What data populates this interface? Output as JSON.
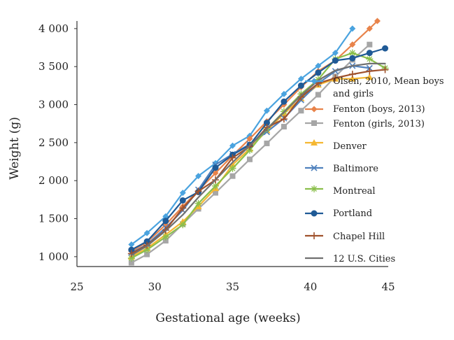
{
  "chart_data": {
    "type": "line",
    "xlabel": "Gestational age (weeks)",
    "ylabel": "Weight (g)",
    "xlim": [
      25,
      45
    ],
    "ylim": [
      870,
      4100
    ],
    "x_ticks": [
      25,
      30,
      35,
      40,
      45
    ],
    "x_tick_labels": [
      "25",
      "30",
      "35",
      "40",
      "45"
    ],
    "y_ticks": [
      1000,
      1500,
      2000,
      2500,
      3000,
      3500,
      4000
    ],
    "y_tick_labels": [
      "1 000",
      "1 500",
      "2 000",
      "2 500",
      "3 000",
      "3 500",
      "4 000"
    ],
    "grid": false,
    "legend_position": "right",
    "series": [
      {
        "name": "Olsen, 2010, Mean boys and girls",
        "color": "#4aa3df",
        "marker": "diamond",
        "x": [
          28.5,
          29.5,
          30.7,
          31.8,
          32.8,
          33.9,
          35.0,
          36.1,
          37.2,
          38.3,
          39.4,
          40.5,
          41.6,
          42.7
        ],
        "y": [
          1160,
          1310,
          1530,
          1840,
          2060,
          2230,
          2460,
          2590,
          2920,
          3140,
          3340,
          3510,
          3680,
          4000
        ]
      },
      {
        "name": "Fenton (boys, 2013)",
        "color": "#e8834a",
        "marker": "diamond",
        "x": [
          28.5,
          29.5,
          30.7,
          31.8,
          32.8,
          33.9,
          35.0,
          36.1,
          37.2,
          38.3,
          39.4,
          40.5,
          41.6,
          42.7,
          43.8,
          44.3
        ],
        "y": [
          1070,
          1190,
          1420,
          1660,
          1870,
          2100,
          2330,
          2550,
          2780,
          3000,
          3230,
          3440,
          3580,
          3790,
          4000,
          4100
        ]
      },
      {
        "name": "Fenton (girls, 2013)",
        "color": "#a6a6a6",
        "marker": "square",
        "x": [
          28.5,
          29.5,
          30.7,
          31.8,
          32.8,
          33.9,
          35.0,
          36.1,
          37.2,
          38.3,
          39.4,
          40.5,
          41.6,
          42.7,
          43.8
        ],
        "y": [
          920,
          1030,
          1210,
          1430,
          1630,
          1840,
          2060,
          2280,
          2490,
          2710,
          2920,
          3130,
          3370,
          3590,
          3790
        ]
      },
      {
        "name": "Denver",
        "color": "#f5b731",
        "marker": "triangle",
        "x": [
          28.5,
          29.5,
          30.7,
          31.8,
          32.8,
          33.9,
          35.0,
          36.1,
          37.2,
          38.3,
          39.4,
          40.5,
          41.6,
          42.7,
          43.8
        ],
        "y": [
          1000,
          1110,
          1290,
          1460,
          1660,
          1900,
          2210,
          2420,
          2660,
          2880,
          3080,
          3260,
          3340,
          3340,
          3360
        ]
      },
      {
        "name": "Baltimore",
        "color": "#4f81bd",
        "marker": "x",
        "x": [
          28.5,
          29.5,
          30.7,
          31.8,
          32.8,
          33.9,
          35.0,
          36.1,
          37.2,
          38.3,
          39.4,
          40.5,
          41.6,
          42.7,
          43.8
        ],
        "y": [
          1050,
          1160,
          1380,
          1610,
          1880,
          2210,
          2350,
          2480,
          2640,
          2820,
          3060,
          3280,
          3440,
          3510,
          3480
        ]
      },
      {
        "name": "Montreal",
        "color": "#8bbf4c",
        "marker": "star",
        "x": [
          28.5,
          29.5,
          30.7,
          31.8,
          32.8,
          33.9,
          35.0,
          36.1,
          37.2,
          38.3,
          39.4,
          40.5,
          41.6,
          42.7,
          43.8,
          44.8
        ],
        "y": [
          980,
          1090,
          1260,
          1420,
          1700,
          1930,
          2160,
          2400,
          2680,
          2910,
          3140,
          3330,
          3600,
          3680,
          3600,
          3480
        ]
      },
      {
        "name": "Portland",
        "color": "#1f5a96",
        "marker": "circle",
        "x": [
          28.5,
          29.5,
          30.7,
          31.8,
          32.8,
          33.9,
          35.0,
          36.1,
          37.2,
          38.3,
          39.4,
          40.5,
          41.6,
          42.7,
          43.8,
          44.8
        ],
        "y": [
          1090,
          1200,
          1470,
          1740,
          1850,
          2170,
          2340,
          2470,
          2760,
          3040,
          3250,
          3420,
          3580,
          3610,
          3680,
          3740
        ]
      },
      {
        "name": "Chapel Hill",
        "color": "#a0522d",
        "marker": "plus",
        "x": [
          28.5,
          29.5,
          30.7,
          31.8,
          32.8,
          33.9,
          35.0,
          36.1,
          37.2,
          38.3,
          39.4,
          40.5,
          41.6,
          42.7,
          43.8,
          44.8
        ],
        "y": [
          1040,
          1150,
          1350,
          1640,
          1860,
          2010,
          2300,
          2450,
          2700,
          2810,
          3100,
          3280,
          3350,
          3400,
          3440,
          3460
        ]
      },
      {
        "name": "12 U.S. Cities",
        "color": "#707070",
        "marker": "none",
        "x": [
          28.5,
          29.5,
          30.7,
          31.8,
          32.8,
          33.9,
          35.0,
          36.1,
          37.2,
          38.3,
          39.4,
          40.5,
          41.6,
          42.7,
          43.8,
          44.8
        ],
        "y": [
          1020,
          1140,
          1340,
          1550,
          1780,
          2010,
          2240,
          2460,
          2680,
          2900,
          3120,
          3320,
          3450,
          3510,
          3540,
          3540
        ]
      }
    ]
  }
}
